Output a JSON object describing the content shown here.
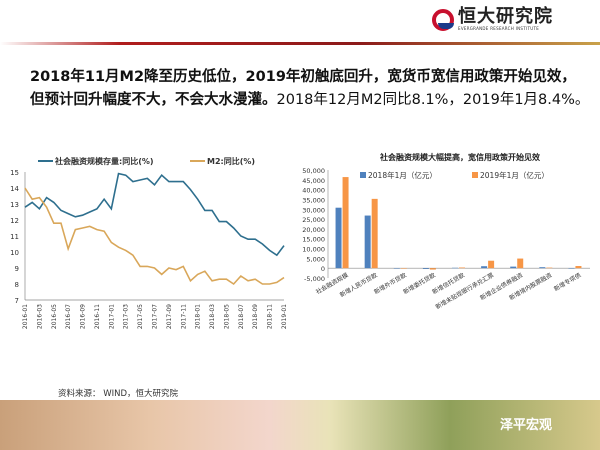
{
  "header": {
    "logo_cn": "恒大研究院",
    "logo_en": "EVERGRANDE RESEARCH INSTITUTE"
  },
  "headline": {
    "bold": "2018年11月M2降至历史低位，2019年初触底回升，宽货币宽信用政策开始见效，但预计回升幅度不大，不会大水漫灌。",
    "normal": "2018年12月M2同比8.1%，2019年1月8.4%。"
  },
  "source": "资料来源： WIND，恒大研究院",
  "watermark": "泽平宏观",
  "colors": {
    "blue": "#2e6f8e",
    "orange": "#d9a75a",
    "bar2018": "#4f81bd",
    "bar2019": "#f79646"
  },
  "chart_data": [
    {
      "type": "line",
      "title": "",
      "xlabel": "",
      "ylabel": "",
      "ylim": [
        7,
        15
      ],
      "yticks": [
        7,
        8,
        9,
        10,
        11,
        12,
        13,
        14,
        15
      ],
      "xticks": [
        "2016-01",
        "2016-03",
        "2016-05",
        "2016-07",
        "2016-09",
        "2016-11",
        "2017-01",
        "2017-03",
        "2017-05",
        "2017-07",
        "2017-09",
        "2017-11",
        "2018-01",
        "2018-03",
        "2018-05",
        "2018-07",
        "2018-09",
        "2018-11",
        "2019-01"
      ],
      "legend_position": "top",
      "series": [
        {
          "name": "社会融资规模存量:同比(%)",
          "color": "#2e6f8e",
          "values": [
            12.8,
            13.1,
            12.7,
            13.4,
            13.1,
            12.6,
            12.4,
            12.2,
            12.3,
            12.5,
            12.7,
            13.3,
            12.7,
            14.9,
            14.8,
            14.4,
            14.5,
            14.6,
            14.2,
            14.8,
            14.4,
            14.4,
            14.4,
            13.9,
            13.3,
            12.6,
            12.6,
            11.9,
            11.9,
            11.5,
            11.0,
            10.8,
            10.8,
            10.5,
            10.1,
            9.8,
            10.4
          ]
        },
        {
          "name": "M2:同比(%)",
          "color": "#d9a75a",
          "values": [
            14.0,
            13.3,
            13.4,
            12.8,
            11.8,
            11.8,
            10.2,
            11.4,
            11.5,
            11.6,
            11.4,
            11.3,
            10.6,
            10.3,
            10.1,
            9.8,
            9.1,
            9.1,
            9.0,
            8.6,
            9.0,
            8.9,
            9.1,
            8.2,
            8.6,
            8.8,
            8.2,
            8.3,
            8.3,
            8.0,
            8.5,
            8.2,
            8.3,
            8.0,
            8.0,
            8.1,
            8.4
          ]
        }
      ]
    },
    {
      "type": "bar",
      "title": "社会融资规模大幅提高，宽信用政策开始见效",
      "ylim": [
        -5000,
        50000
      ],
      "yticks": [
        "-5,000",
        "0",
        "5,000",
        "10,000",
        "15,000",
        "20,000",
        "25,000",
        "30,000",
        "35,000",
        "40,000",
        "45,000",
        "50,000"
      ],
      "legend_position": "top",
      "categories": [
        "社会融资规模",
        "新增人民币贷款",
        "新增外币贷款",
        "新增委托贷款",
        "新增信托贷款",
        "新增未贴现银行承兑汇票",
        "新增企业债券融资",
        "新增境内股票融资",
        "新增专项债"
      ],
      "series": [
        {
          "name": "2018年1月（亿元）",
          "color": "#4f81bd",
          "values": [
            30800,
            26800,
            0,
            -400,
            200,
            1000,
            800,
            500,
            0
          ]
        },
        {
          "name": "2019年1月（亿元）",
          "color": "#f79646",
          "values": [
            46400,
            35300,
            -100,
            -700,
            350,
            3800,
            4900,
            290,
            1100
          ]
        }
      ]
    }
  ]
}
